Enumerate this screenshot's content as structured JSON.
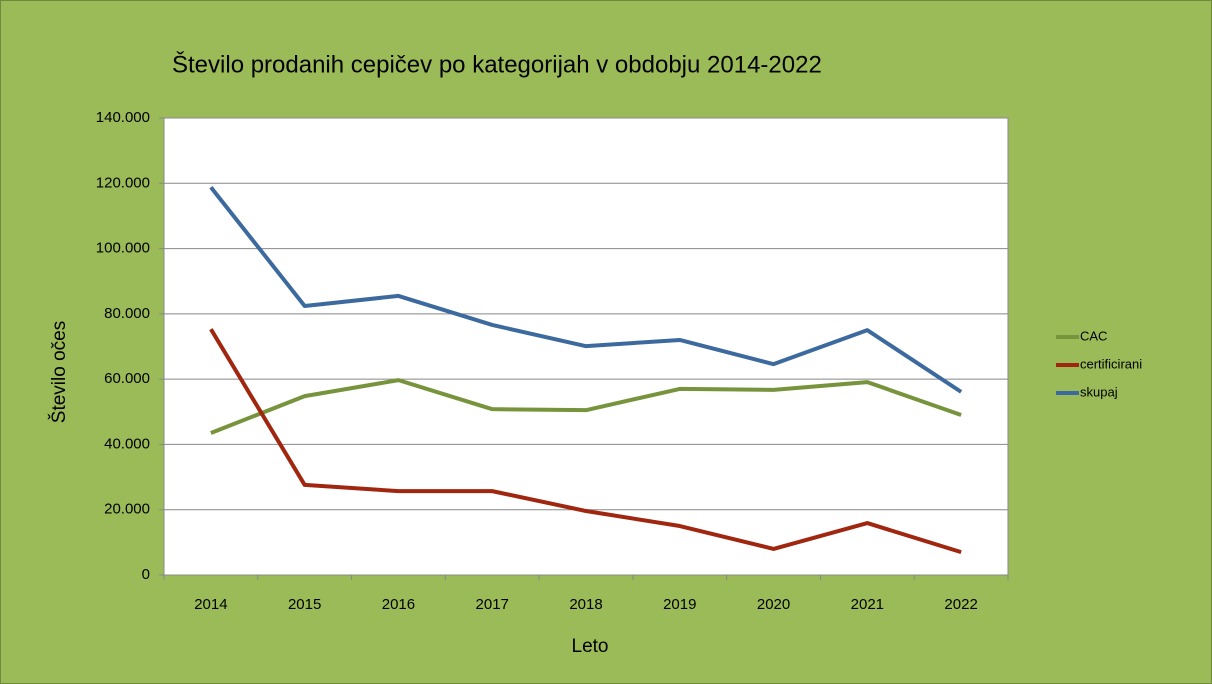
{
  "chart_data": {
    "type": "line",
    "title": "Število prodanih cepičev po kategorijah v obdobju 2014-2022",
    "x_label": "Leto",
    "y_label": "Število očes",
    "categories": [
      "2014",
      "2015",
      "2016",
      "2017",
      "2018",
      "2019",
      "2020",
      "2021",
      "2022"
    ],
    "series": [
      {
        "name": "CAC",
        "color": "#77933c",
        "values": [
          43500,
          54800,
          59700,
          50800,
          50500,
          57000,
          56700,
          59100,
          49000
        ]
      },
      {
        "name": "certificirani",
        "color": "#a0260f",
        "values": [
          75300,
          27600,
          25700,
          25700,
          19600,
          15000,
          8000,
          15900,
          7000
        ]
      },
      {
        "name": "skupaj",
        "color": "#3d6a9e",
        "values": [
          118800,
          82400,
          85500,
          76600,
          70100,
          72000,
          64600,
          75000,
          56100
        ]
      }
    ],
    "ylim": [
      0,
      140000
    ],
    "yticks": [
      0,
      {
        "value": 20000,
        "label": "20.000"
      },
      {
        "value": 40000,
        "label": "40.000"
      },
      {
        "value": 60000,
        "label": "60.000"
      },
      {
        "value": 80000,
        "label": "80.000"
      },
      {
        "value": 100000,
        "label": "100.000"
      },
      {
        "value": 120000,
        "label": "120.000"
      },
      {
        "value": 140000,
        "label": "140.000"
      }
    ],
    "grid": true,
    "legend": "right"
  }
}
